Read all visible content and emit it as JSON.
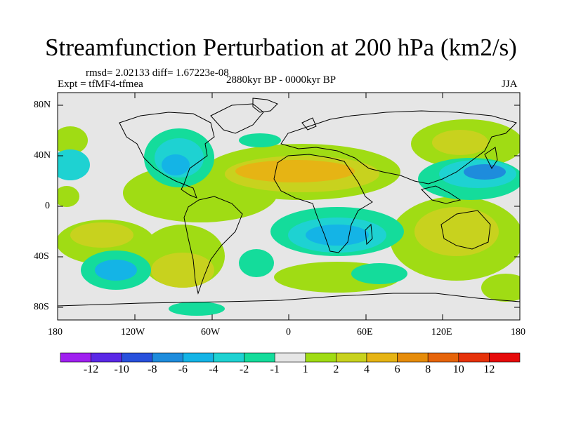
{
  "title": "Streamfunction Perturbation at 200 hPa (km2/s)",
  "stats": "rmsd= 2.02133  diff= 1.67223e-08",
  "experiment": "Expt = tfMF4-tfmea",
  "period": "2880kyr BP - 0000kyr BP",
  "season": "JJA",
  "lat_ticks": [
    "80N",
    "40N",
    "0",
    "40S",
    "80S"
  ],
  "lon_ticks": [
    "180",
    "120W",
    "60W",
    "0",
    "60E",
    "120E",
    "180"
  ],
  "colorbar": {
    "labels": [
      "-12",
      "-10",
      "-8",
      "-6",
      "-4",
      "-2",
      "-1",
      "1",
      "2",
      "4",
      "6",
      "8",
      "10",
      "12"
    ],
    "colors": [
      "#a020f0",
      "#5a28e6",
      "#2850dc",
      "#1e8cdc",
      "#14b4e6",
      "#1ed2d2",
      "#14dc9b",
      "#e6e6e6",
      "#a0dc14",
      "#c8d21e",
      "#e6b414",
      "#e68c0a",
      "#e6640a",
      "#e6320a",
      "#e60a0a"
    ]
  }
}
